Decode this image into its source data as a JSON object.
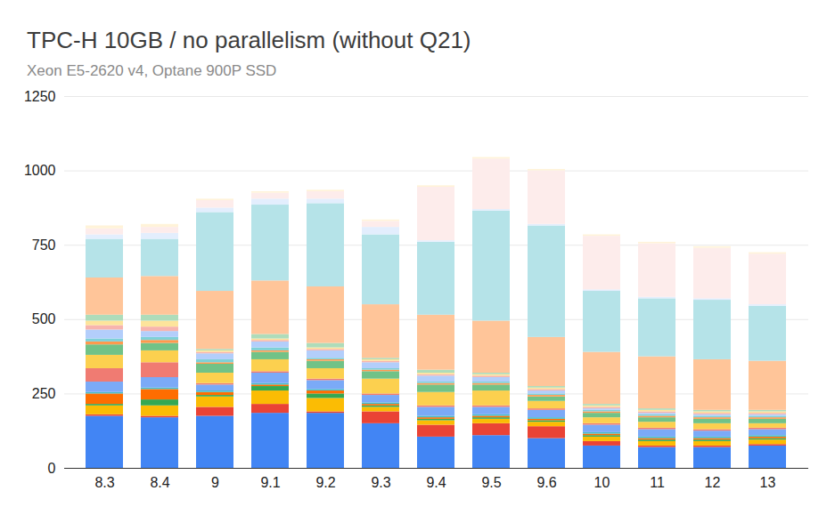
{
  "chart_data": {
    "type": "bar",
    "stacked": true,
    "title": "TPC-H 10GB / no parallelism (without Q21)",
    "subtitle": "Xeon E5-2620 v4, Optane 900P SSD",
    "categories": [
      "8.3",
      "8.4",
      "9",
      "9.1",
      "9.2",
      "9.3",
      "9.4",
      "9.5",
      "9.6",
      "10",
      "11",
      "12",
      "13"
    ],
    "ylim": [
      0,
      1250
    ],
    "yticks": [
      0,
      250,
      500,
      750,
      1000,
      1250
    ],
    "grid": true,
    "series": [
      {
        "color": "#4285f4",
        "values": [
          175,
          170,
          175,
          185,
          185,
          150,
          105,
          110,
          100,
          75,
          70,
          70,
          75
        ]
      },
      {
        "color": "#ea4335",
        "values": [
          5,
          5,
          30,
          30,
          5,
          40,
          40,
          40,
          40,
          15,
          5,
          5,
          5
        ]
      },
      {
        "color": "#fbbc04",
        "values": [
          30,
          35,
          35,
          45,
          45,
          15,
          15,
          15,
          15,
          15,
          15,
          15,
          15
        ]
      },
      {
        "color": "#34a853",
        "values": [
          5,
          20,
          5,
          15,
          15,
          5,
          5,
          5,
          5,
          5,
          5,
          5,
          5
        ]
      },
      {
        "color": "#ff6d01",
        "values": [
          35,
          35,
          10,
          5,
          10,
          5,
          5,
          5,
          5,
          5,
          5,
          5,
          5
        ]
      },
      {
        "color": "#46bdc6",
        "values": [
          5,
          5,
          5,
          5,
          5,
          5,
          5,
          5,
          5,
          5,
          5,
          5,
          5
        ]
      },
      {
        "color": "#7baaf7",
        "values": [
          35,
          35,
          20,
          35,
          30,
          25,
          30,
          25,
          25,
          25,
          25,
          20,
          20
        ]
      },
      {
        "color": "#f07b72",
        "values": [
          45,
          50,
          5,
          5,
          5,
          5,
          5,
          5,
          5,
          5,
          5,
          5,
          5
        ]
      },
      {
        "color": "#fcd04f",
        "values": [
          45,
          40,
          35,
          40,
          35,
          50,
          45,
          50,
          25,
          20,
          20,
          20,
          15
        ]
      },
      {
        "color": "#71c287",
        "values": [
          35,
          25,
          30,
          25,
          25,
          25,
          25,
          20,
          15,
          15,
          15,
          15,
          15
        ]
      },
      {
        "color": "#ff994d",
        "values": [
          10,
          10,
          5,
          5,
          5,
          5,
          5,
          5,
          5,
          5,
          5,
          5,
          5
        ]
      },
      {
        "color": "#7ed1d7",
        "values": [
          10,
          10,
          10,
          10,
          5,
          5,
          5,
          5,
          5,
          5,
          5,
          5,
          5
        ]
      },
      {
        "color": "#b3cefb",
        "values": [
          30,
          20,
          20,
          20,
          25,
          20,
          20,
          15,
          10,
          5,
          5,
          5,
          5
        ]
      },
      {
        "color": "#f7b4ae",
        "values": [
          15,
          15,
          5,
          5,
          5,
          5,
          5,
          5,
          5,
          5,
          5,
          5,
          5
        ]
      },
      {
        "color": "#fde49b",
        "values": [
          15,
          20,
          5,
          5,
          5,
          5,
          5,
          5,
          5,
          5,
          5,
          5,
          5
        ]
      },
      {
        "color": "#aedcba",
        "values": [
          20,
          20,
          5,
          15,
          15,
          5,
          10,
          5,
          5,
          5,
          5,
          5,
          5
        ]
      },
      {
        "color": "#ffc599",
        "values": [
          125,
          130,
          195,
          180,
          190,
          180,
          185,
          175,
          165,
          175,
          175,
          170,
          165
        ]
      },
      {
        "color": "#b5e3e8",
        "values": [
          130,
          125,
          265,
          255,
          280,
          235,
          245,
          370,
          375,
          205,
          195,
          200,
          185
        ]
      },
      {
        "color": "#e3eefd",
        "values": [
          15,
          20,
          15,
          20,
          15,
          25,
          5,
          5,
          5,
          5,
          5,
          5,
          5
        ]
      },
      {
        "color": "#fdeceb",
        "values": [
          20,
          20,
          25,
          20,
          25,
          20,
          180,
          170,
          180,
          180,
          180,
          170,
          170
        ]
      },
      {
        "color": "#fff3d9",
        "values": [
          10,
          10,
          5,
          5,
          5,
          5,
          5,
          5,
          5,
          5,
          5,
          5,
          5
        ]
      }
    ]
  }
}
